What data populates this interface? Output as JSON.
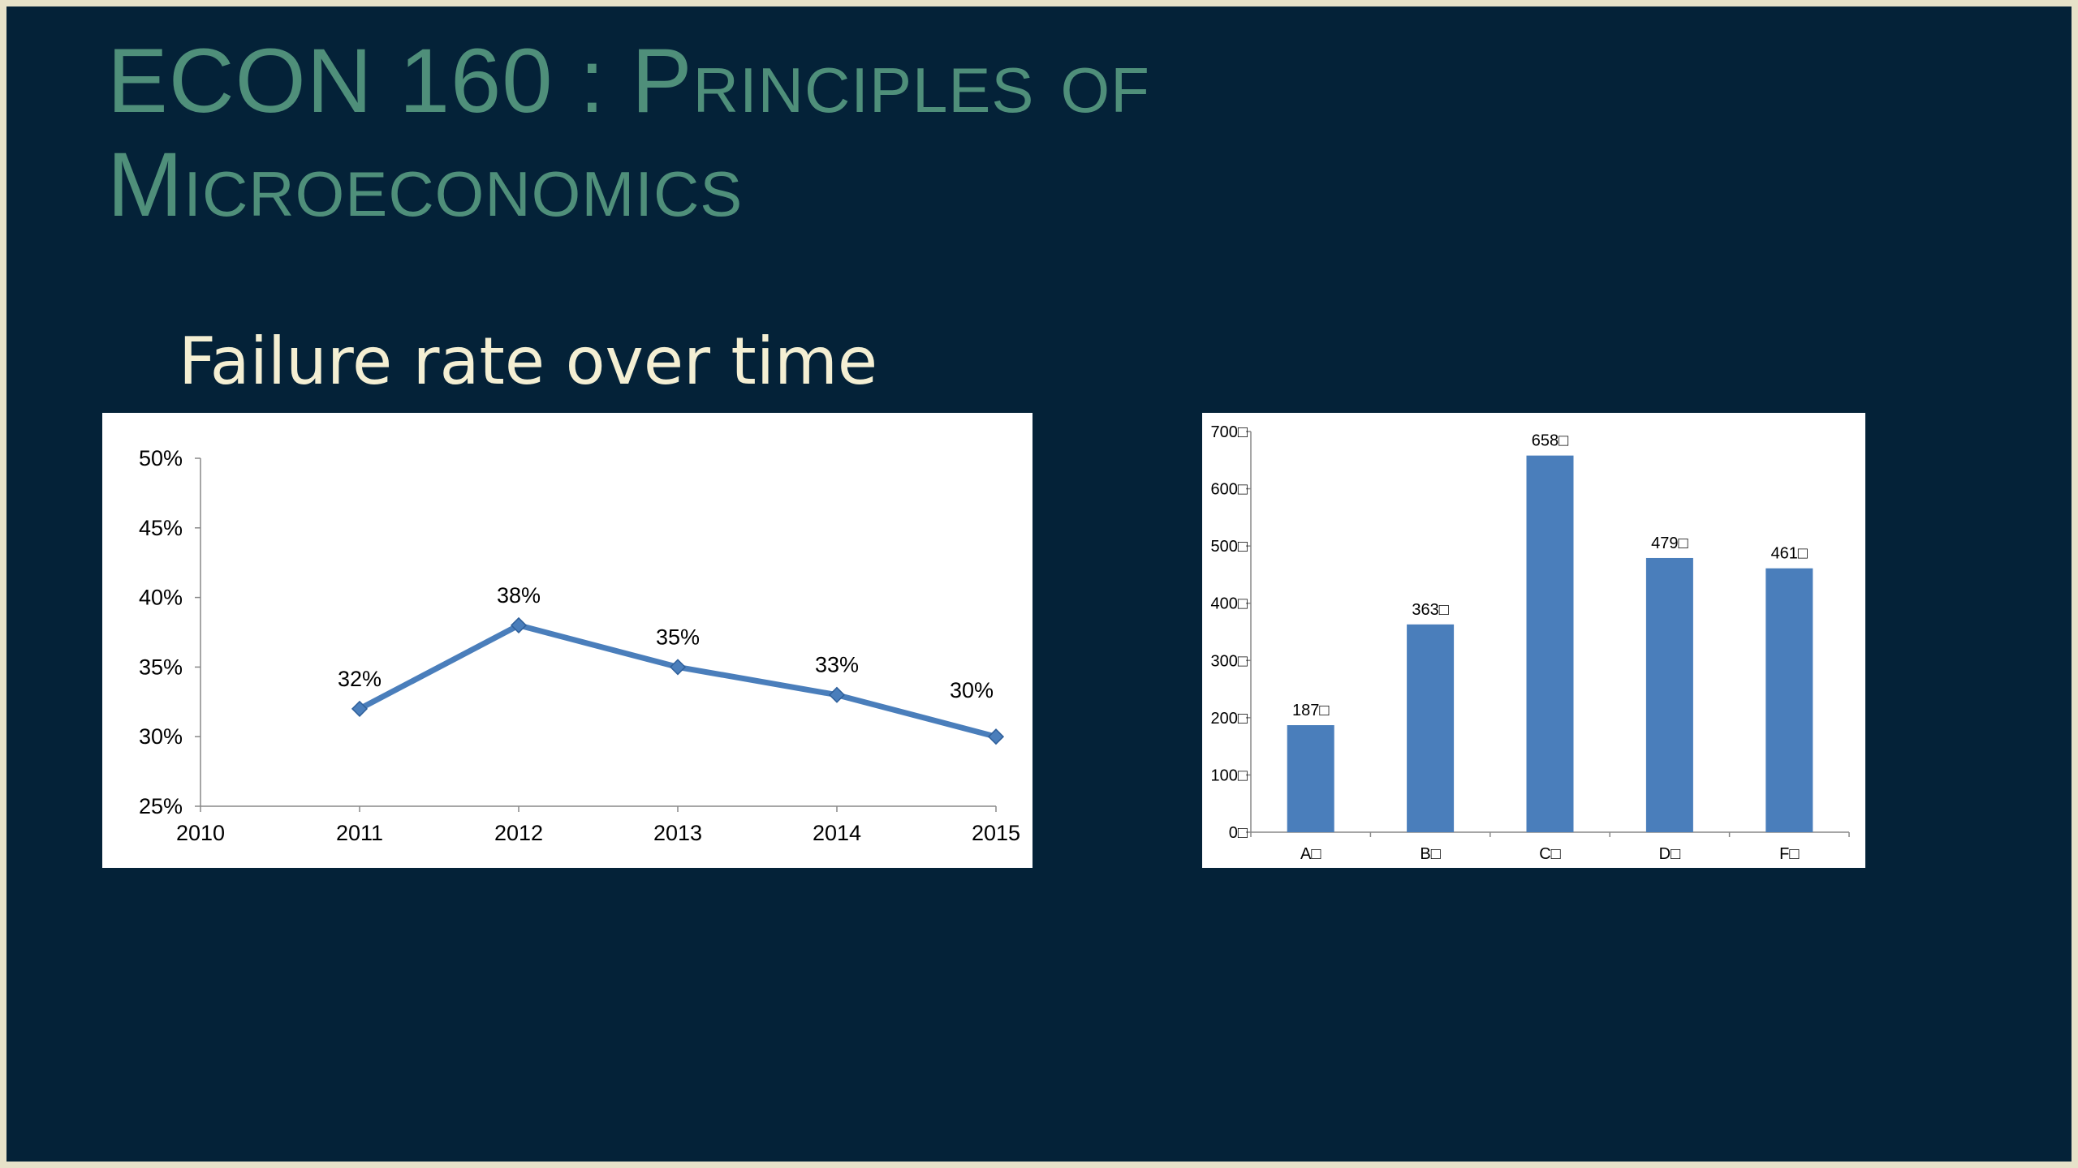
{
  "slide": {
    "title_line1": "ECON 160 : Principles of",
    "title_line2": "Microeconomics",
    "subtitle": "Failure rate over time"
  },
  "colors": {
    "background": "#042238",
    "frame": "#e7e2c9",
    "title": "#4f8f7a",
    "subtitle": "#f4efd3",
    "series": "#4a7ebb"
  },
  "chart_data": [
    {
      "type": "line",
      "x": [
        2011,
        2012,
        2013,
        2014,
        2015
      ],
      "values": [
        32,
        38,
        35,
        33,
        30
      ],
      "data_labels": [
        "32%",
        "38%",
        "35%",
        "33%",
        "30%"
      ],
      "x_ticks": [
        "2010",
        "2011",
        "2012",
        "2013",
        "2014",
        "2015"
      ],
      "y_ticks": [
        "25%",
        "30%",
        "35%",
        "40%",
        "45%",
        "50%"
      ],
      "xlim": [
        2010,
        2015
      ],
      "ylim": [
        25,
        50
      ],
      "grid": false,
      "legend": "none"
    },
    {
      "type": "bar",
      "categories": [
        "A",
        "B",
        "C",
        "D",
        "F"
      ],
      "category_labels": [
        "A□",
        "B□",
        "C□",
        "D□",
        "F□"
      ],
      "values": [
        187,
        363,
        658,
        479,
        461
      ],
      "data_labels": [
        "187□",
        "363□",
        "658□",
        "479□",
        "461□"
      ],
      "y_ticks": [
        "0□",
        "100□",
        "200□",
        "300□",
        "400□",
        "500□",
        "600□",
        "700□"
      ],
      "ylim": [
        0,
        700
      ],
      "grid": false,
      "legend": "none"
    }
  ]
}
